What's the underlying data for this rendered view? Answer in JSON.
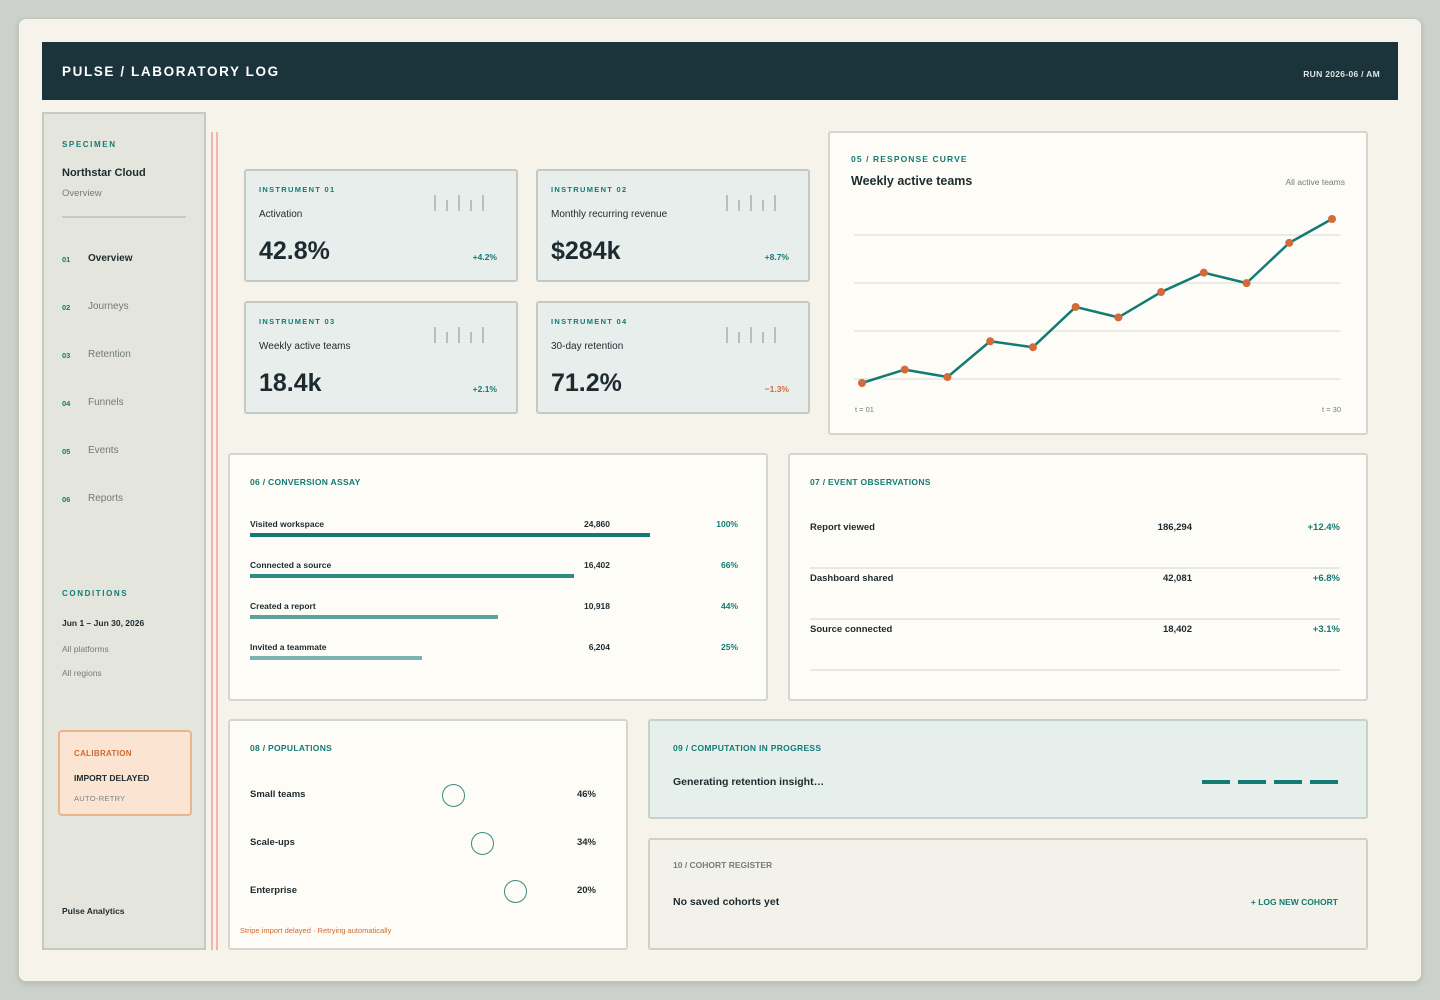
{
  "header": {
    "title": "PULSE / LABORATORY LOG",
    "run": "RUN 2026-06 / AM"
  },
  "sidebar": {
    "specimen_kicker": "SPECIMEN",
    "specimen_name": "Northstar Cloud",
    "specimen_sub": "Overview",
    "nav": [
      {
        "num": "01",
        "label": "Overview"
      },
      {
        "num": "02",
        "label": "Journeys"
      },
      {
        "num": "03",
        "label": "Retention"
      },
      {
        "num": "04",
        "label": "Funnels"
      },
      {
        "num": "05",
        "label": "Events"
      },
      {
        "num": "06",
        "label": "Reports"
      }
    ],
    "conditions_kicker": "CONDITIONS",
    "conditions": [
      "Jun 1 – Jun 30, 2026",
      "All platforms",
      "All regions"
    ],
    "calibration": {
      "kicker": "CALIBRATION",
      "title": "IMPORT DELAYED",
      "sub": "AUTO-RETRY"
    },
    "brand": "Pulse Analytics"
  },
  "kpis": [
    {
      "kicker": "INSTRUMENT 01",
      "label": "Activation",
      "value": "42.8%",
      "delta": "+4.2%"
    },
    {
      "kicker": "INSTRUMENT 02",
      "label": "Monthly recurring revenue",
      "value": "$284k",
      "delta": "+8.7%"
    },
    {
      "kicker": "INSTRUMENT 03",
      "label": "Weekly active teams",
      "value": "18.4k",
      "delta": "+2.1%"
    },
    {
      "kicker": "INSTRUMENT 04",
      "label": "30-day retention",
      "value": "71.2%",
      "delta": "−1.3%"
    }
  ],
  "response_curve": {
    "kicker": "05 / RESPONSE CURVE",
    "title": "Weekly active teams",
    "filter": "All active teams",
    "x_start_label": "t = 01",
    "x_end_label": "t = 30"
  },
  "chart_data": {
    "type": "line",
    "title": "Weekly active teams",
    "x_labels": [
      "t = 01",
      "t = 30"
    ],
    "series": [
      {
        "values": [
          0.0,
          0.09,
          0.04,
          0.28,
          0.24,
          0.51,
          0.44,
          0.61,
          0.74,
          0.67,
          0.94,
          1.1
        ]
      }
    ],
    "ylim": [
      0,
      1.1
    ],
    "grid": true,
    "line_color": "#137a74",
    "point_color": "#d4693a"
  },
  "conversion": {
    "kicker": "06 / CONVERSION ASSAY",
    "steps": [
      {
        "name": "Visited workspace",
        "count": "24,860",
        "pct": "100%",
        "share": 1.0,
        "color": "#147b74"
      },
      {
        "name": "Connected a source",
        "count": "16,402",
        "pct": "66%",
        "share": 0.81,
        "color": "#2e8c85"
      },
      {
        "name": "Created a report",
        "count": "10,918",
        "pct": "44%",
        "share": 0.62,
        "color": "#5aa39d"
      },
      {
        "name": "Invited a teammate",
        "count": "6,204",
        "pct": "25%",
        "share": 0.43,
        "color": "#7ab5b0"
      }
    ]
  },
  "events": {
    "kicker": "07 / EVENT OBSERVATIONS",
    "rows": [
      {
        "name": "Report viewed",
        "count": "186,294",
        "delta": "+12.4%"
      },
      {
        "name": "Dashboard shared",
        "count": "42,081",
        "delta": "+6.8%"
      },
      {
        "name": "Source connected",
        "count": "18,402",
        "delta": "+3.1%"
      }
    ]
  },
  "populations": {
    "kicker": "08 / POPULATIONS",
    "rows": [
      {
        "name": "Small teams",
        "pct": "46%",
        "share": 0.46
      },
      {
        "name": "Scale-ups",
        "pct": "34%",
        "share": 0.34
      },
      {
        "name": "Enterprise",
        "pct": "20%",
        "share": 0.2
      }
    ],
    "note": "Stripe import delayed · Retrying automatically"
  },
  "computation": {
    "kicker": "09 / COMPUTATION IN PROGRESS",
    "text": "Generating retention insight…"
  },
  "cohorts": {
    "kicker": "10 / COHORT REGISTER",
    "empty": "No saved cohorts yet",
    "action": "+ LOG NEW COHORT"
  }
}
